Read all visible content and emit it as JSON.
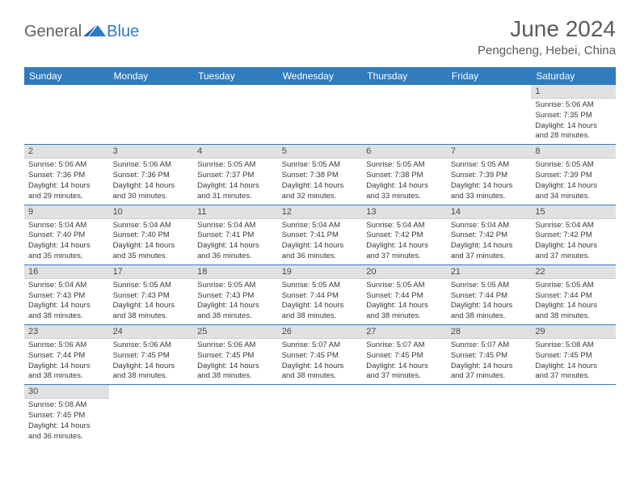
{
  "brand": {
    "general": "General",
    "blue": "Blue"
  },
  "title": "June 2024",
  "location": "Pengcheng, Hebei, China",
  "colors": {
    "header_bg": "#317bbf",
    "daynum_bg": "#e1e1e1",
    "rule": "#317bbf"
  },
  "weekdays": [
    "Sunday",
    "Monday",
    "Tuesday",
    "Wednesday",
    "Thursday",
    "Friday",
    "Saturday"
  ],
  "weeks": [
    [
      null,
      null,
      null,
      null,
      null,
      null,
      {
        "n": "1",
        "sr": "Sunrise: 5:06 AM",
        "ss": "Sunset: 7:35 PM",
        "dl": "Daylight: 14 hours and 28 minutes."
      }
    ],
    [
      {
        "n": "2",
        "sr": "Sunrise: 5:06 AM",
        "ss": "Sunset: 7:36 PM",
        "dl": "Daylight: 14 hours and 29 minutes."
      },
      {
        "n": "3",
        "sr": "Sunrise: 5:06 AM",
        "ss": "Sunset: 7:36 PM",
        "dl": "Daylight: 14 hours and 30 minutes."
      },
      {
        "n": "4",
        "sr": "Sunrise: 5:05 AM",
        "ss": "Sunset: 7:37 PM",
        "dl": "Daylight: 14 hours and 31 minutes."
      },
      {
        "n": "5",
        "sr": "Sunrise: 5:05 AM",
        "ss": "Sunset: 7:38 PM",
        "dl": "Daylight: 14 hours and 32 minutes."
      },
      {
        "n": "6",
        "sr": "Sunrise: 5:05 AM",
        "ss": "Sunset: 7:38 PM",
        "dl": "Daylight: 14 hours and 33 minutes."
      },
      {
        "n": "7",
        "sr": "Sunrise: 5:05 AM",
        "ss": "Sunset: 7:39 PM",
        "dl": "Daylight: 14 hours and 33 minutes."
      },
      {
        "n": "8",
        "sr": "Sunrise: 5:05 AM",
        "ss": "Sunset: 7:39 PM",
        "dl": "Daylight: 14 hours and 34 minutes."
      }
    ],
    [
      {
        "n": "9",
        "sr": "Sunrise: 5:04 AM",
        "ss": "Sunset: 7:40 PM",
        "dl": "Daylight: 14 hours and 35 minutes."
      },
      {
        "n": "10",
        "sr": "Sunrise: 5:04 AM",
        "ss": "Sunset: 7:40 PM",
        "dl": "Daylight: 14 hours and 35 minutes."
      },
      {
        "n": "11",
        "sr": "Sunrise: 5:04 AM",
        "ss": "Sunset: 7:41 PM",
        "dl": "Daylight: 14 hours and 36 minutes."
      },
      {
        "n": "12",
        "sr": "Sunrise: 5:04 AM",
        "ss": "Sunset: 7:41 PM",
        "dl": "Daylight: 14 hours and 36 minutes."
      },
      {
        "n": "13",
        "sr": "Sunrise: 5:04 AM",
        "ss": "Sunset: 7:42 PM",
        "dl": "Daylight: 14 hours and 37 minutes."
      },
      {
        "n": "14",
        "sr": "Sunrise: 5:04 AM",
        "ss": "Sunset: 7:42 PM",
        "dl": "Daylight: 14 hours and 37 minutes."
      },
      {
        "n": "15",
        "sr": "Sunrise: 5:04 AM",
        "ss": "Sunset: 7:42 PM",
        "dl": "Daylight: 14 hours and 37 minutes."
      }
    ],
    [
      {
        "n": "16",
        "sr": "Sunrise: 5:04 AM",
        "ss": "Sunset: 7:43 PM",
        "dl": "Daylight: 14 hours and 38 minutes."
      },
      {
        "n": "17",
        "sr": "Sunrise: 5:05 AM",
        "ss": "Sunset: 7:43 PM",
        "dl": "Daylight: 14 hours and 38 minutes."
      },
      {
        "n": "18",
        "sr": "Sunrise: 5:05 AM",
        "ss": "Sunset: 7:43 PM",
        "dl": "Daylight: 14 hours and 38 minutes."
      },
      {
        "n": "19",
        "sr": "Sunrise: 5:05 AM",
        "ss": "Sunset: 7:44 PM",
        "dl": "Daylight: 14 hours and 38 minutes."
      },
      {
        "n": "20",
        "sr": "Sunrise: 5:05 AM",
        "ss": "Sunset: 7:44 PM",
        "dl": "Daylight: 14 hours and 38 minutes."
      },
      {
        "n": "21",
        "sr": "Sunrise: 5:05 AM",
        "ss": "Sunset: 7:44 PM",
        "dl": "Daylight: 14 hours and 38 minutes."
      },
      {
        "n": "22",
        "sr": "Sunrise: 5:05 AM",
        "ss": "Sunset: 7:44 PM",
        "dl": "Daylight: 14 hours and 38 minutes."
      }
    ],
    [
      {
        "n": "23",
        "sr": "Sunrise: 5:06 AM",
        "ss": "Sunset: 7:44 PM",
        "dl": "Daylight: 14 hours and 38 minutes."
      },
      {
        "n": "24",
        "sr": "Sunrise: 5:06 AM",
        "ss": "Sunset: 7:45 PM",
        "dl": "Daylight: 14 hours and 38 minutes."
      },
      {
        "n": "25",
        "sr": "Sunrise: 5:06 AM",
        "ss": "Sunset: 7:45 PM",
        "dl": "Daylight: 14 hours and 38 minutes."
      },
      {
        "n": "26",
        "sr": "Sunrise: 5:07 AM",
        "ss": "Sunset: 7:45 PM",
        "dl": "Daylight: 14 hours and 38 minutes."
      },
      {
        "n": "27",
        "sr": "Sunrise: 5:07 AM",
        "ss": "Sunset: 7:45 PM",
        "dl": "Daylight: 14 hours and 37 minutes."
      },
      {
        "n": "28",
        "sr": "Sunrise: 5:07 AM",
        "ss": "Sunset: 7:45 PM",
        "dl": "Daylight: 14 hours and 37 minutes."
      },
      {
        "n": "29",
        "sr": "Sunrise: 5:08 AM",
        "ss": "Sunset: 7:45 PM",
        "dl": "Daylight: 14 hours and 37 minutes."
      }
    ],
    [
      {
        "n": "30",
        "sr": "Sunrise: 5:08 AM",
        "ss": "Sunset: 7:45 PM",
        "dl": "Daylight: 14 hours and 36 minutes."
      },
      null,
      null,
      null,
      null,
      null,
      null
    ]
  ]
}
